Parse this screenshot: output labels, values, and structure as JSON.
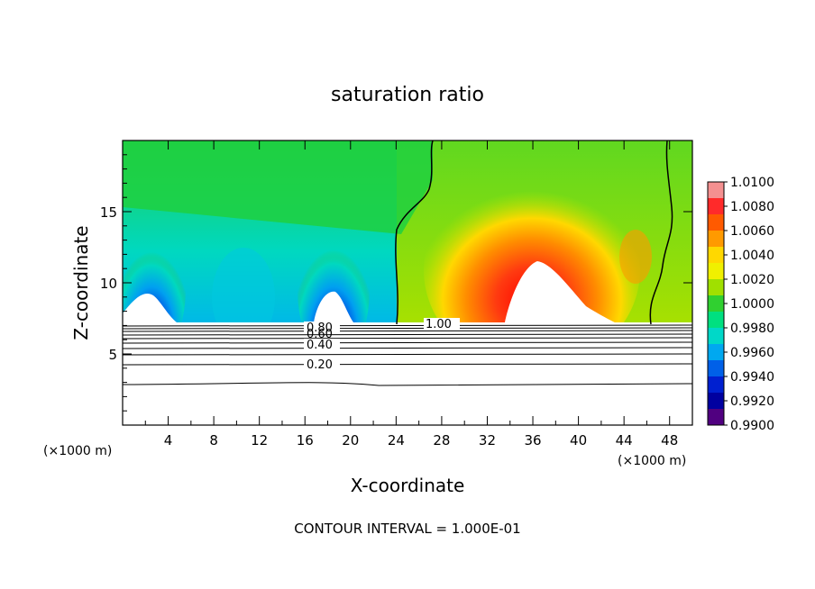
{
  "chart_data": {
    "type": "heatmap",
    "title": "saturation ratio",
    "xlabel": "X-coordinate",
    "ylabel": "Z-coordinate",
    "x_unit": "(×1000 m)",
    "y_unit": "(×1000 m)",
    "footer": "CONTOUR INTERVAL = 1.000E-01",
    "xlim": [
      0,
      50
    ],
    "ylim": [
      0,
      20
    ],
    "x_ticks": [
      4,
      8,
      12,
      16,
      20,
      24,
      28,
      32,
      36,
      40,
      44,
      48
    ],
    "y_ticks": [
      5,
      10,
      15
    ],
    "colorbar": {
      "range": [
        0.99,
        1.01
      ],
      "labels": [
        "1.0100",
        "1.0080",
        "1.0060",
        "1.0040",
        "1.0020",
        "1.0000",
        "0.9980",
        "0.9960",
        "0.9940",
        "0.9920",
        "0.9900"
      ],
      "colors": [
        "#f49090",
        "#ff2a2a",
        "#ff5a00",
        "#ff9a00",
        "#ffd800",
        "#f0f000",
        "#a0e000",
        "#30d030",
        "#00e080",
        "#00d8c8",
        "#00a8f0",
        "#0060e8",
        "#0020d0",
        "#0000a0",
        "#500080"
      ]
    },
    "contour_labels": [
      "0.80",
      "0.60",
      "0.40",
      "0.20",
      "1.00"
    ],
    "contour_levels": [
      0.1,
      0.2,
      0.3,
      0.4,
      0.5,
      0.6,
      0.7,
      0.8,
      0.9,
      1.0
    ],
    "features": {
      "saturation_boundary_x_at_top": [
        23.5,
        47
      ],
      "peak_x": 36,
      "peak_z": 12,
      "minima_x": [
        2,
        18
      ]
    }
  }
}
